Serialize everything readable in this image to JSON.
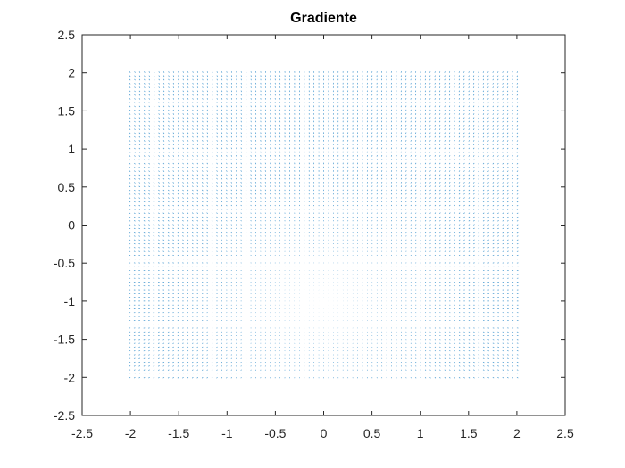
{
  "chart_data": {
    "type": "quiver",
    "title": "Gradiente",
    "xlabel": "",
    "ylabel": "",
    "xlim": [
      -2.5,
      2.5
    ],
    "ylim": [
      -2.5,
      2.5
    ],
    "xticks": [
      "-2.5",
      "-2",
      "-1.5",
      "-1",
      "-0.5",
      "0",
      "0.5",
      "1",
      "1.5",
      "2",
      "2.5"
    ],
    "yticks": [
      "2.5",
      "2",
      "1.5",
      "1",
      "0.5",
      "0",
      "-0.5",
      "-1",
      "-1.5",
      "-2",
      "-2.5"
    ],
    "grid": {
      "x_range": [
        -2,
        2
      ],
      "y_range": [
        -2,
        2
      ],
      "step": 0.05
    },
    "field_min_point": [
      0,
      -1
    ],
    "color": "#0072BD",
    "grid_lines": false,
    "legend": "none"
  }
}
